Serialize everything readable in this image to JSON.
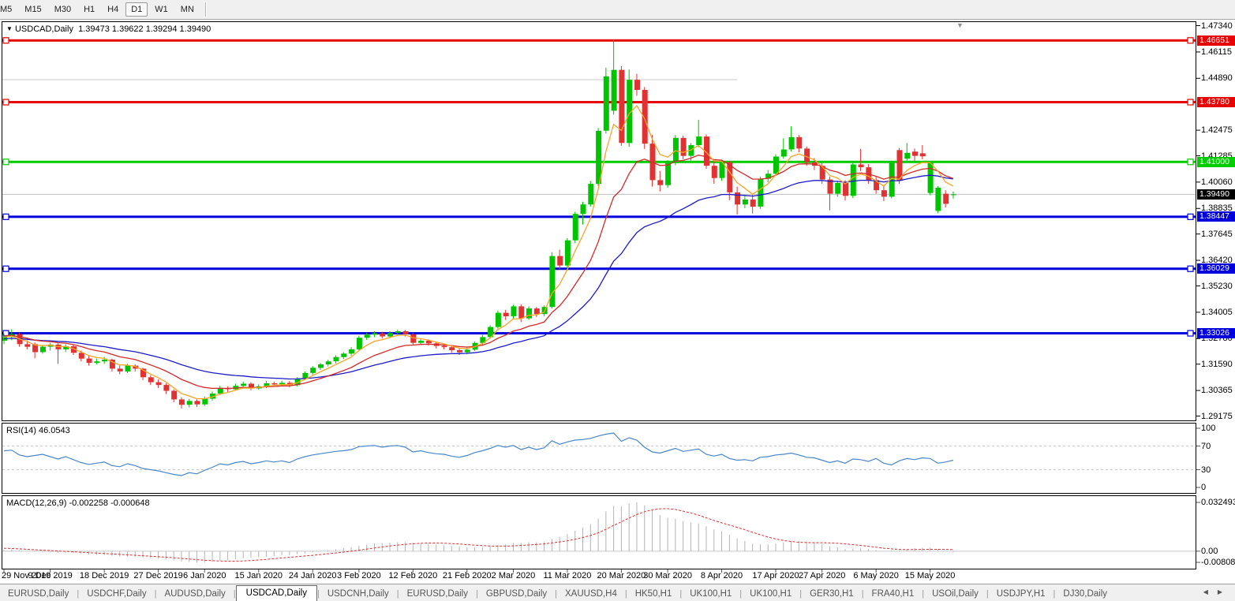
{
  "toolbar": {
    "timeframes": [
      "M5",
      "M15",
      "M30",
      "H1",
      "H4",
      "D1",
      "W1",
      "MN"
    ],
    "active": "D1"
  },
  "icons": {
    "title_dropdown": "▼",
    "scroll_marker": "▼",
    "tab_scroll_left": "◀",
    "tab_scroll_right": "▶"
  },
  "chart": {
    "symbol": "USDCAD,Daily",
    "ohlc_text": "1.39473 1.39622 1.39294 1.39490",
    "rsi_label": "RSI(14) 46.0543",
    "macd_label": "MACD(12,26,9) -0.002258 -0.000648"
  },
  "price_axis": {
    "ticks": [
      "1.47340",
      "1.46115",
      "1.44890",
      "1.42475",
      "1.41285",
      "1.40060",
      "1.38835",
      "1.37645",
      "1.36420",
      "1.35230",
      "1.34005",
      "1.32780",
      "1.31590",
      "1.30365",
      "1.29175"
    ]
  },
  "price_tags": [
    {
      "label": "1.46651",
      "bg": "#e60000"
    },
    {
      "label": "1.43780",
      "bg": "#e60000"
    },
    {
      "label": "1.41000",
      "bg": "#00cc00"
    },
    {
      "label": "1.39490",
      "bg": "#000000"
    },
    {
      "label": "1.38447",
      "bg": "#0000dd"
    },
    {
      "label": "1.36029",
      "bg": "#0000dd"
    },
    {
      "label": "1.33026",
      "bg": "#0000dd"
    }
  ],
  "chart_data": {
    "type": "candlestick",
    "title": "USDCAD,Daily",
    "hlines": [
      {
        "price": 1.46651,
        "color": "#e60000"
      },
      {
        "price": 1.4378,
        "color": "#e60000"
      },
      {
        "price": 1.41,
        "color": "#00cc00"
      },
      {
        "price": 1.38447,
        "color": "#0000dd"
      },
      {
        "price": 1.36029,
        "color": "#0000dd"
      },
      {
        "price": 1.33026,
        "color": "#0000dd"
      }
    ],
    "current_price": 1.3949,
    "silver_segment": {
      "price": 1.44825,
      "to_index": 95
    },
    "colors": {
      "up": "#00c400",
      "down": "#e03232",
      "ma_fast": "#f7a428",
      "ma_med": "#d42a2a",
      "ma_slow": "#1c1cc8",
      "rsi": "#4a86c8",
      "macd_hist": "#b4b4b4",
      "macd_signal": "#e03030",
      "grid": "#c8c8c8",
      "price_line": "#c0c0c0"
    },
    "ma_periods": {
      "fast": 5,
      "med": 13,
      "slow": 30
    },
    "pre_closes": [
      1.316,
      1.3172,
      1.3155,
      1.3148,
      1.3162,
      1.3175,
      1.3168,
      1.318,
      1.3172,
      1.3165,
      1.3158,
      1.317,
      1.3182,
      1.3175,
      1.319,
      1.3202,
      1.3195,
      1.3188,
      1.3205,
      1.3218,
      1.3225,
      1.3212,
      1.3228,
      1.324,
      1.3252,
      1.3245,
      1.326,
      1.3272,
      1.3265,
      1.328,
      1.3295,
      1.3305,
      1.3298,
      1.331,
      1.3322,
      1.3315,
      1.3308,
      1.332,
      1.3312,
      1.33,
      1.3308,
      1.3315,
      1.3305,
      1.3298,
      1.331,
      1.3302,
      1.3295,
      1.3288,
      1.328,
      1.3272
    ],
    "candles": [
      [
        1.3268,
        1.33,
        1.3252,
        1.3285
      ],
      [
        1.3285,
        1.3322,
        1.327,
        1.3298
      ],
      [
        1.3298,
        1.3305,
        1.324,
        1.3252
      ],
      [
        1.3252,
        1.327,
        1.3228,
        1.324
      ],
      [
        1.3252,
        1.326,
        1.3186,
        1.3215
      ],
      [
        1.3215,
        1.3248,
        1.3208,
        1.324
      ],
      [
        1.324,
        1.3258,
        1.3222,
        1.325
      ],
      [
        1.325,
        1.3256,
        1.316,
        1.3228
      ],
      [
        1.3228,
        1.3252,
        1.3215,
        1.3242
      ],
      [
        1.3242,
        1.3248,
        1.3202,
        1.3212
      ],
      [
        1.3212,
        1.3222,
        1.3172,
        1.3185
      ],
      [
        1.3185,
        1.3198,
        1.3152,
        1.3165
      ],
      [
        1.3165,
        1.3185,
        1.3158,
        1.3172
      ],
      [
        1.3172,
        1.3192,
        1.316,
        1.318
      ],
      [
        1.318,
        1.3185,
        1.3125,
        1.3138
      ],
      [
        1.3138,
        1.3152,
        1.3112,
        1.3125
      ],
      [
        1.3125,
        1.316,
        1.3118,
        1.3152
      ],
      [
        1.3152,
        1.3158,
        1.3125,
        1.3138
      ],
      [
        1.3138,
        1.3142,
        1.3085,
        1.3098
      ],
      [
        1.3098,
        1.3108,
        1.3062,
        1.3075
      ],
      [
        1.3075,
        1.3088,
        1.3048,
        1.3062
      ],
      [
        1.3062,
        1.307,
        1.302,
        1.3035
      ],
      [
        1.3035,
        1.3042,
        1.2982,
        1.2995
      ],
      [
        1.2995,
        1.3005,
        1.2952,
        1.297
      ],
      [
        1.297,
        1.2998,
        1.2958,
        1.2988
      ],
      [
        1.2988,
        1.2995,
        1.296,
        1.2972
      ],
      [
        1.2972,
        1.3008,
        1.2965,
        1.2998
      ],
      [
        1.2998,
        1.3032,
        1.299,
        1.3022
      ],
      [
        1.3022,
        1.3058,
        1.3015,
        1.3048
      ],
      [
        1.3048,
        1.3055,
        1.303,
        1.3042
      ],
      [
        1.3042,
        1.3068,
        1.3035,
        1.3058
      ],
      [
        1.3058,
        1.3078,
        1.305,
        1.3068
      ],
      [
        1.3068,
        1.3075,
        1.3038,
        1.3046
      ],
      [
        1.3046,
        1.3065,
        1.304,
        1.3056
      ],
      [
        1.3056,
        1.308,
        1.3048,
        1.307
      ],
      [
        1.307,
        1.3078,
        1.3055,
        1.3065
      ],
      [
        1.3065,
        1.3082,
        1.3058,
        1.3072
      ],
      [
        1.3072,
        1.308,
        1.3052,
        1.3062
      ],
      [
        1.3062,
        1.3098,
        1.3055,
        1.3092
      ],
      [
        1.3092,
        1.3125,
        1.3085,
        1.3118
      ],
      [
        1.3118,
        1.315,
        1.311,
        1.3142
      ],
      [
        1.3142,
        1.3165,
        1.3132,
        1.3158
      ],
      [
        1.3158,
        1.318,
        1.3148,
        1.3172
      ],
      [
        1.3172,
        1.32,
        1.3162,
        1.3192
      ],
      [
        1.3192,
        1.3215,
        1.3182,
        1.3208
      ],
      [
        1.3208,
        1.3238,
        1.3198,
        1.3228
      ],
      [
        1.3228,
        1.3292,
        1.322,
        1.3282
      ],
      [
        1.3282,
        1.3305,
        1.3272,
        1.3296
      ],
      [
        1.3296,
        1.3312,
        1.3285,
        1.3302
      ],
      [
        1.3302,
        1.331,
        1.3278,
        1.3288
      ],
      [
        1.3288,
        1.3312,
        1.328,
        1.3304
      ],
      [
        1.3304,
        1.332,
        1.3295,
        1.3312
      ],
      [
        1.3312,
        1.3318,
        1.3288,
        1.3298
      ],
      [
        1.3298,
        1.3305,
        1.3248,
        1.3258
      ],
      [
        1.3258,
        1.3275,
        1.325,
        1.3268
      ],
      [
        1.3268,
        1.3275,
        1.3246,
        1.3256
      ],
      [
        1.3256,
        1.3262,
        1.3232,
        1.3244
      ],
      [
        1.3244,
        1.3255,
        1.3228,
        1.3238
      ],
      [
        1.3238,
        1.3244,
        1.3212,
        1.3224
      ],
      [
        1.3224,
        1.3232,
        1.3202,
        1.3214
      ],
      [
        1.3214,
        1.3238,
        1.3205,
        1.3226
      ],
      [
        1.3226,
        1.3265,
        1.322,
        1.3258
      ],
      [
        1.3258,
        1.3295,
        1.325,
        1.3285
      ],
      [
        1.3285,
        1.334,
        1.3278,
        1.3332
      ],
      [
        1.3332,
        1.3408,
        1.3325,
        1.3398
      ],
      [
        1.3398,
        1.3412,
        1.3365,
        1.3382
      ],
      [
        1.3382,
        1.3435,
        1.337,
        1.3428
      ],
      [
        1.3428,
        1.3438,
        1.3355,
        1.3372
      ],
      [
        1.3372,
        1.3428,
        1.3365,
        1.3418
      ],
      [
        1.3418,
        1.3425,
        1.3378,
        1.3392
      ],
      [
        1.3392,
        1.3432,
        1.3382,
        1.3425
      ],
      [
        1.3425,
        1.368,
        1.3418,
        1.3662
      ],
      [
        1.3662,
        1.3692,
        1.3598,
        1.3618
      ],
      [
        1.3618,
        1.3745,
        1.3605,
        1.3735
      ],
      [
        1.3735,
        1.3868,
        1.3722,
        1.3858
      ],
      [
        1.3858,
        1.3915,
        1.3808,
        1.3902
      ],
      [
        1.3902,
        1.4012,
        1.3892,
        1.3998
      ],
      [
        1.3998,
        1.4258,
        1.3988,
        1.4245
      ],
      [
        1.4245,
        1.4538,
        1.4232,
        1.4498
      ],
      [
        1.4338,
        1.4669,
        1.432,
        1.4528
      ],
      [
        1.4528,
        1.4545,
        1.4175,
        1.4188
      ],
      [
        1.4188,
        1.453,
        1.417,
        1.4482
      ],
      [
        1.4482,
        1.451,
        1.4408,
        1.4435
      ],
      [
        1.4435,
        1.4448,
        1.416,
        1.4185
      ],
      [
        1.4185,
        1.4225,
        1.3985,
        1.4015
      ],
      [
        1.4015,
        1.4058,
        1.3962,
        1.3992
      ],
      [
        1.3992,
        1.4108,
        1.398,
        1.4095
      ],
      [
        1.4095,
        1.4225,
        1.4085,
        1.4212
      ],
      [
        1.4212,
        1.4222,
        1.4112,
        1.4128
      ],
      [
        1.4128,
        1.4188,
        1.4105,
        1.4178
      ],
      [
        1.4178,
        1.4296,
        1.4168,
        1.4218
      ],
      [
        1.4218,
        1.4228,
        1.4068,
        1.4082
      ],
      [
        1.4082,
        1.4105,
        1.3998,
        1.4025
      ],
      [
        1.4025,
        1.4108,
        1.4012,
        1.4098
      ],
      [
        1.4098,
        1.4105,
        1.3922,
        1.3958
      ],
      [
        1.3958,
        1.3985,
        1.3855,
        1.3902
      ],
      [
        1.3902,
        1.3942,
        1.3885,
        1.3925
      ],
      [
        1.3925,
        1.3948,
        1.386,
        1.3892
      ],
      [
        1.3892,
        1.4032,
        1.3882,
        1.4022
      ],
      [
        1.4022,
        1.4062,
        1.4005,
        1.4045
      ],
      [
        1.4045,
        1.4135,
        1.4035,
        1.4125
      ],
      [
        1.4125,
        1.421,
        1.4115,
        1.4158
      ],
      [
        1.4158,
        1.4265,
        1.4148,
        1.4215
      ],
      [
        1.4215,
        1.4225,
        1.4145,
        1.4162
      ],
      [
        1.4162,
        1.4172,
        1.4082,
        1.4098
      ],
      [
        1.4098,
        1.4118,
        1.4062,
        1.4082
      ],
      [
        1.4082,
        1.4095,
        1.3998,
        1.4018
      ],
      [
        1.4018,
        1.4032,
        1.3875,
        1.3952
      ],
      [
        1.3952,
        1.4012,
        1.3938,
        1.4002
      ],
      [
        1.4002,
        1.4015,
        1.392,
        1.3942
      ],
      [
        1.3942,
        1.4098,
        1.3932,
        1.4088
      ],
      [
        1.4088,
        1.416,
        1.4058,
        1.4075
      ],
      [
        1.4075,
        1.409,
        1.3998,
        1.4015
      ],
      [
        1.4015,
        1.4032,
        1.3952,
        1.3968
      ],
      [
        1.3968,
        1.3992,
        1.3918,
        1.3938
      ],
      [
        1.3938,
        1.4105,
        1.393,
        1.4095
      ],
      [
        1.4155,
        1.4165,
        1.3998,
        1.4012
      ],
      [
        1.4115,
        1.4188,
        1.4105,
        1.4142
      ],
      [
        1.4148,
        1.4162,
        1.4105,
        1.4128
      ],
      [
        1.414,
        1.4178,
        1.4112,
        1.4126
      ],
      [
        1.3955,
        1.4098,
        1.3945,
        1.4095
      ],
      [
        1.3872,
        1.3988,
        1.3862,
        1.398
      ],
      [
        1.3952,
        1.3968,
        1.3888,
        1.3905
      ],
      [
        1.39473,
        1.39622,
        1.39294,
        1.3949
      ]
    ],
    "x_labels": [
      {
        "text": "29 Nov 2019",
        "index": 0
      },
      {
        "text": "9 Dec 2019",
        "index": 6
      },
      {
        "text": "18 Dec 2019",
        "index": 13
      },
      {
        "text": "27 Dec 2019",
        "index": 20
      },
      {
        "text": "6 Jan 2020",
        "index": 26
      },
      {
        "text": "15 Jan 2020",
        "index": 33
      },
      {
        "text": "24 Jan 2020",
        "index": 40
      },
      {
        "text": "3 Feb 2020",
        "index": 46
      },
      {
        "text": "12 Feb 2020",
        "index": 53
      },
      {
        "text": "21 Feb 2020",
        "index": 60
      },
      {
        "text": "2 Mar 2020",
        "index": 66
      },
      {
        "text": "11 Mar 2020",
        "index": 73
      },
      {
        "text": "20 Mar 2020",
        "index": 80
      },
      {
        "text": "30 Mar 2020",
        "index": 86
      },
      {
        "text": "8 Apr 2020",
        "index": 93
      },
      {
        "text": "17 Apr 2020",
        "index": 100
      },
      {
        "text": "27 Apr 2020",
        "index": 106
      },
      {
        "text": "6 May 2020",
        "index": 113
      },
      {
        "text": "15 May 2020",
        "index": 120
      }
    ],
    "rsi": {
      "levels": [
        70,
        30
      ],
      "axis_labels": [
        "100",
        "70",
        "30",
        "0"
      ],
      "values": [
        62,
        63,
        55,
        52,
        54,
        56,
        52,
        48,
        52,
        47,
        42,
        39,
        41,
        43,
        37,
        35,
        40,
        37,
        32,
        30,
        28,
        25,
        22,
        20,
        25,
        23,
        29,
        34,
        40,
        38,
        42,
        44,
        40,
        42,
        45,
        43,
        45,
        42,
        48,
        52,
        55,
        57,
        59,
        61,
        62,
        64,
        69,
        70,
        71,
        68,
        70,
        71,
        68,
        60,
        62,
        59,
        57,
        56,
        53,
        51,
        54,
        59,
        62,
        66,
        71,
        68,
        71,
        64,
        68,
        64,
        67,
        79,
        73,
        77,
        80,
        81,
        83,
        87,
        90,
        92,
        78,
        84,
        80,
        68,
        60,
        58,
        62,
        66,
        61,
        63,
        65,
        56,
        53,
        56,
        49,
        46,
        47,
        45,
        51,
        52,
        55,
        56,
        58,
        55,
        51,
        50,
        46,
        42,
        45,
        41,
        48,
        47,
        44,
        49,
        41,
        38,
        45,
        49,
        47,
        50,
        49,
        41,
        43,
        46
      ]
    },
    "macd": {
      "fast": 12,
      "slow": 26,
      "signal": 9,
      "axis_labels": [
        "0.032493",
        "0.00",
        "-0.008086"
      ]
    }
  },
  "bottom_tabs": {
    "items": [
      "EURUSD,Daily",
      "USDCHF,Daily",
      "AUDUSD,Daily",
      "USDCAD,Daily",
      "USDCNH,Daily",
      "EURUSD,Daily",
      "GBPUSD,Daily",
      "XAUUSD,H4",
      "HK50,H1",
      "UK100,H1",
      "UK100,H1",
      "GER30,H1",
      "FRA40,H1",
      "USOil,Daily",
      "USDJPY,H1",
      "DJ30,Daily"
    ],
    "active_index": 3
  }
}
